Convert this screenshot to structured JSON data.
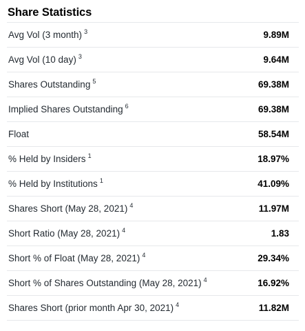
{
  "section": {
    "title": "Share Statistics"
  },
  "rows": [
    {
      "label": "Avg Vol (3 month)",
      "footnote": "3",
      "value": "9.89M"
    },
    {
      "label": "Avg Vol (10 day)",
      "footnote": "3",
      "value": "9.64M"
    },
    {
      "label": "Shares Outstanding",
      "footnote": "5",
      "value": "69.38M"
    },
    {
      "label": "Implied Shares Outstanding",
      "footnote": "6",
      "value": "69.38M"
    },
    {
      "label": "Float",
      "footnote": "",
      "value": "58.54M"
    },
    {
      "label": "% Held by Insiders",
      "footnote": "1",
      "value": "18.97%"
    },
    {
      "label": "% Held by Institutions",
      "footnote": "1",
      "value": "41.09%"
    },
    {
      "label": "Shares Short (May 28, 2021)",
      "footnote": "4",
      "value": "11.97M"
    },
    {
      "label": "Short Ratio (May 28, 2021)",
      "footnote": "4",
      "value": "1.83"
    },
    {
      "label": "Short % of Float (May 28, 2021)",
      "footnote": "4",
      "value": "29.34%"
    },
    {
      "label": "Short % of Shares Outstanding (May 28, 2021)",
      "footnote": "4",
      "value": "16.92%"
    },
    {
      "label": "Shares Short (prior month Apr 30, 2021)",
      "footnote": "4",
      "value": "11.82M"
    }
  ]
}
